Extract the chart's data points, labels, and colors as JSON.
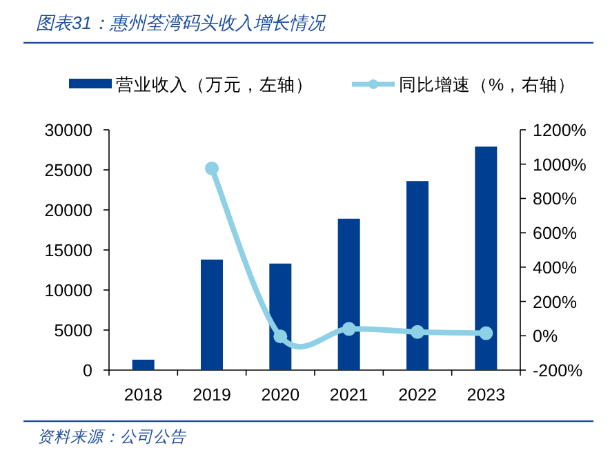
{
  "chart_data": {
    "type": "bar",
    "title": "图表31：惠州荃湾码头收入增长情况",
    "annotations": [
      "资料来源：公司公告"
    ],
    "categories": [
      "2018",
      "2019",
      "2020",
      "2021",
      "2022",
      "2023"
    ],
    "series": [
      {
        "name": "营业收入（万元，左轴）",
        "color": "#003e92",
        "values": [
          1300,
          13800,
          13300,
          18900,
          23600,
          27900
        ]
      },
      {
        "name": "同比增速（%，右轴）",
        "color": "#8ed0e6",
        "type": "line",
        "axis": "y2",
        "values": [
          null,
          975,
          -4,
          40,
          22,
          15
        ]
      }
    ],
    "ylim": [
      0,
      30000
    ],
    "yticks": [
      0,
      5000,
      10000,
      15000,
      20000,
      25000,
      30000
    ],
    "y2lim": [
      -200,
      1200
    ],
    "y2ticks": [
      {
        "value": -200,
        "label": "-200%"
      },
      {
        "value": 0,
        "label": "0%"
      },
      {
        "value": 200,
        "label": "200%"
      },
      {
        "value": 400,
        "label": "400%"
      },
      {
        "value": 600,
        "label": "600%"
      },
      {
        "value": 800,
        "label": "800%"
      },
      {
        "value": 1000,
        "label": "1000%"
      },
      {
        "value": 1200,
        "label": "1200%"
      }
    ],
    "marker": "circle",
    "legend": "top",
    "grid": false
  }
}
